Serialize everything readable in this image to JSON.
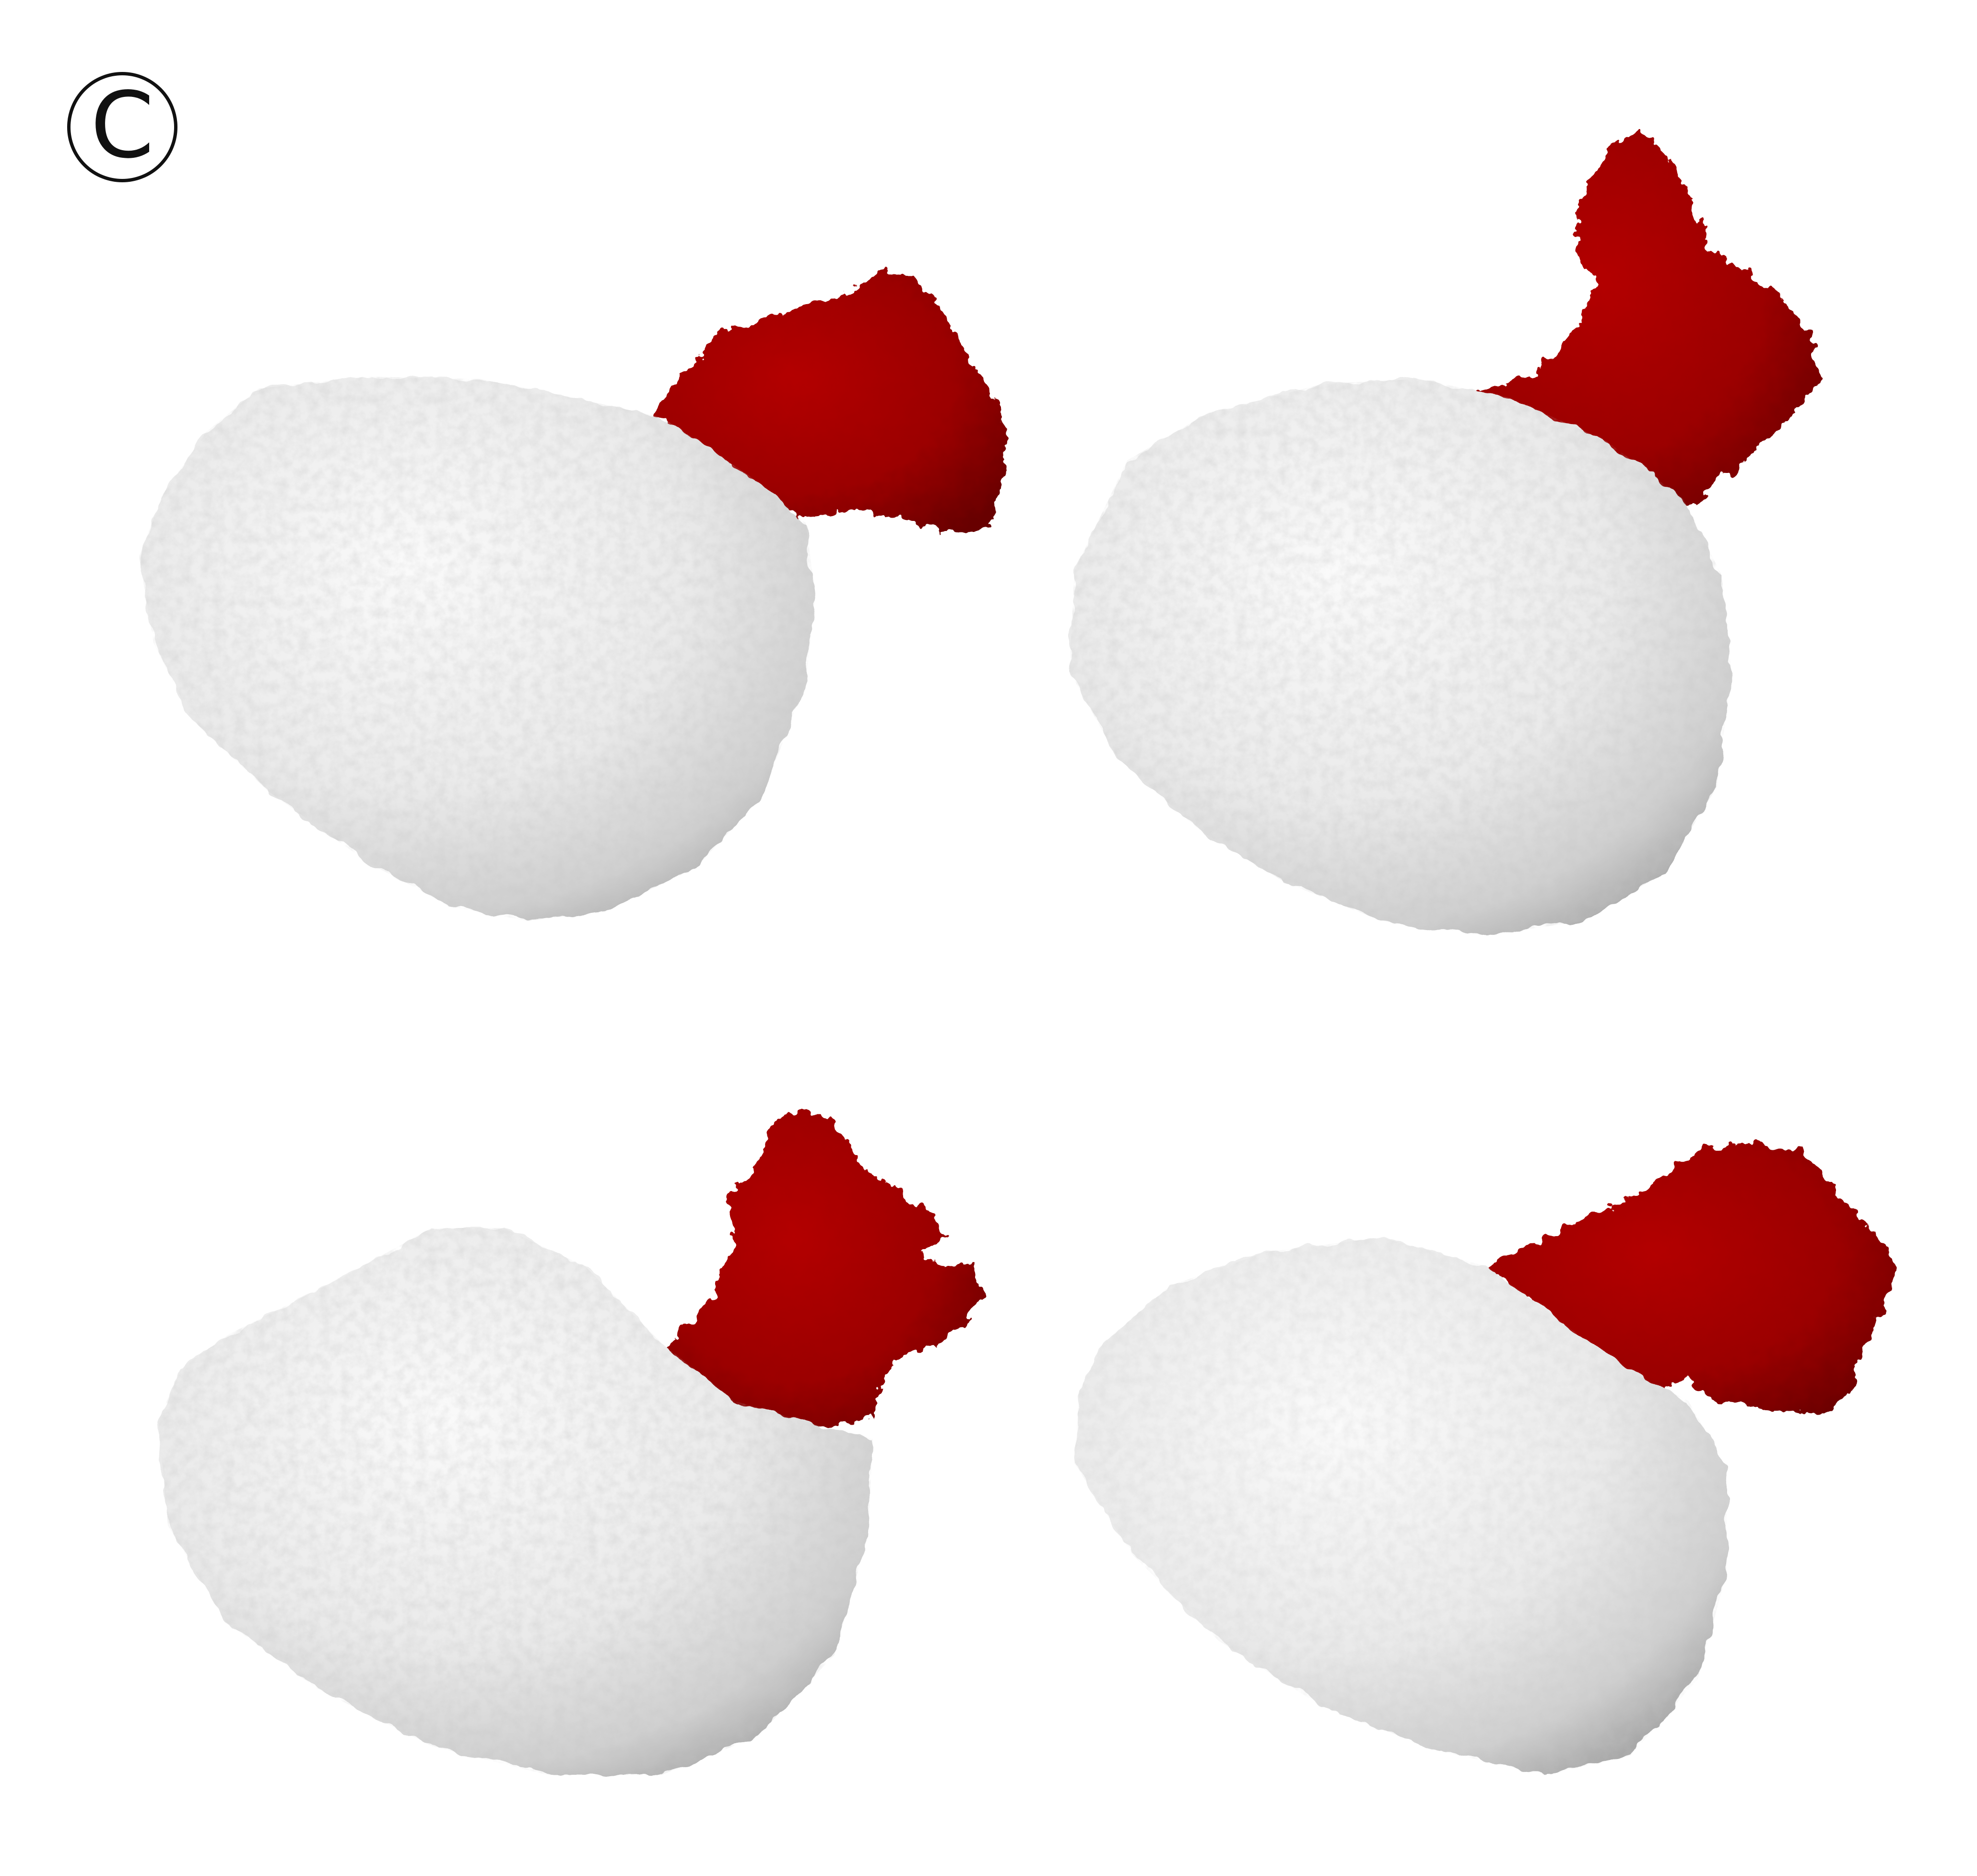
{
  "figure": {
    "panel_label": "C",
    "colors": {
      "background": "#ffffff",
      "body_surface": "#eeeeee",
      "body_shadow": "#b9b9b9",
      "appendage": "#a00000",
      "appendage_dark": "#6e0000"
    },
    "views": [
      {
        "id": "top-left",
        "body": "white-mesh",
        "appendage": "red-mesh"
      },
      {
        "id": "top-right",
        "body": "white-mesh",
        "appendage": "red-mesh"
      },
      {
        "id": "bottom-left",
        "body": "white-mesh",
        "appendage": "red-mesh"
      },
      {
        "id": "bottom-right",
        "body": "white-mesh",
        "appendage": "red-mesh"
      }
    ]
  }
}
